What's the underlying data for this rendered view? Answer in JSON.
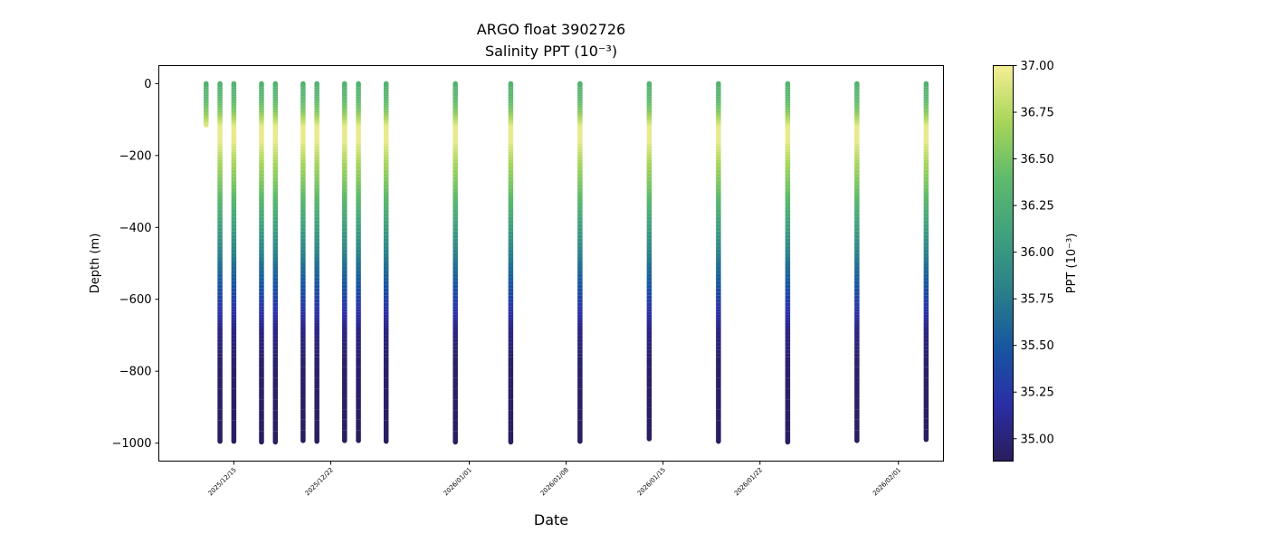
{
  "chart_data": {
    "type": "scatter",
    "title": "ARGO float 3902726",
    "subtitle": "Salinity PPT (10⁻³)",
    "xlabel": "Date",
    "ylabel": "Depth (m)",
    "colorbar_label": "PPT (10⁻³)",
    "xlim": [
      "2025-12-09T14:00",
      "2026-02-04T06:00"
    ],
    "ylim": [
      -1050,
      50
    ],
    "y_ticks": [
      0,
      -200,
      -400,
      -600,
      -800,
      -1000
    ],
    "y_tick_labels": [
      "0",
      "−200",
      "−400",
      "−600",
      "−800",
      "−1000"
    ],
    "x_ticks": [
      "2025-12-15",
      "2025-12-22",
      "2026-01-01",
      "2026-01-08",
      "2026-01-15",
      "2026-01-22",
      "2026-02-01"
    ],
    "x_tick_labels": [
      "2025/12/15",
      "2025/12/22",
      "2026/01/01",
      "2026/01/08",
      "2026/01/15",
      "2026/01/22",
      "2026/02/01"
    ],
    "colorbar_range": [
      34.88,
      37.0
    ],
    "colorbar_ticks": [
      35.0,
      35.25,
      35.5,
      35.75,
      36.0,
      36.25,
      36.5,
      36.75,
      37.0
    ],
    "colorbar_tick_labels": [
      "35.00",
      "35.25",
      "35.50",
      "35.75",
      "36.00",
      "36.25",
      "36.50",
      "36.75",
      "37.00"
    ],
    "colormap": [
      "#2a1d5a",
      "#2b2ea6",
      "#1756a0",
      "#2a7f8a",
      "#3fa07e",
      "#5eba6c",
      "#a7d559",
      "#f5ee95"
    ],
    "grid": false,
    "salinity_profile": [
      {
        "depth": 0,
        "salinity": 36.3
      },
      {
        "depth": -40,
        "salinity": 36.35
      },
      {
        "depth": -80,
        "salinity": 36.55
      },
      {
        "depth": -120,
        "salinity": 36.95
      },
      {
        "depth": -160,
        "salinity": 36.95
      },
      {
        "depth": -220,
        "salinity": 36.7
      },
      {
        "depth": -300,
        "salinity": 36.45
      },
      {
        "depth": -380,
        "salinity": 36.15
      },
      {
        "depth": -460,
        "salinity": 35.85
      },
      {
        "depth": -540,
        "salinity": 35.55
      },
      {
        "depth": -620,
        "salinity": 35.25
      },
      {
        "depth": -680,
        "salinity": 35.05
      },
      {
        "depth": -760,
        "salinity": 34.95
      },
      {
        "depth": -1000,
        "salinity": 34.9
      }
    ],
    "profiles": [
      {
        "date": "2025-12-13T00:00",
        "max_depth": -115
      },
      {
        "date": "2025-12-14T00:00",
        "max_depth": -995
      },
      {
        "date": "2025-12-15T00:00",
        "max_depth": -995
      },
      {
        "date": "2025-12-17T00:00",
        "max_depth": -997
      },
      {
        "date": "2025-12-18T00:00",
        "max_depth": -997
      },
      {
        "date": "2025-12-20T00:00",
        "max_depth": -993
      },
      {
        "date": "2025-12-21T00:00",
        "max_depth": -995
      },
      {
        "date": "2025-12-23T00:00",
        "max_depth": -993
      },
      {
        "date": "2025-12-24T00:00",
        "max_depth": -993
      },
      {
        "date": "2025-12-26T00:00",
        "max_depth": -995
      },
      {
        "date": "2025-12-31T00:00",
        "max_depth": -997
      },
      {
        "date": "2026-01-04T00:00",
        "max_depth": -997
      },
      {
        "date": "2026-01-09T00:00",
        "max_depth": -995
      },
      {
        "date": "2026-01-14T00:00",
        "max_depth": -988
      },
      {
        "date": "2026-01-19T00:00",
        "max_depth": -995
      },
      {
        "date": "2026-01-24T00:00",
        "max_depth": -997
      },
      {
        "date": "2026-01-29T00:00",
        "max_depth": -993
      },
      {
        "date": "2026-02-03T00:00",
        "max_depth": -990
      }
    ]
  }
}
